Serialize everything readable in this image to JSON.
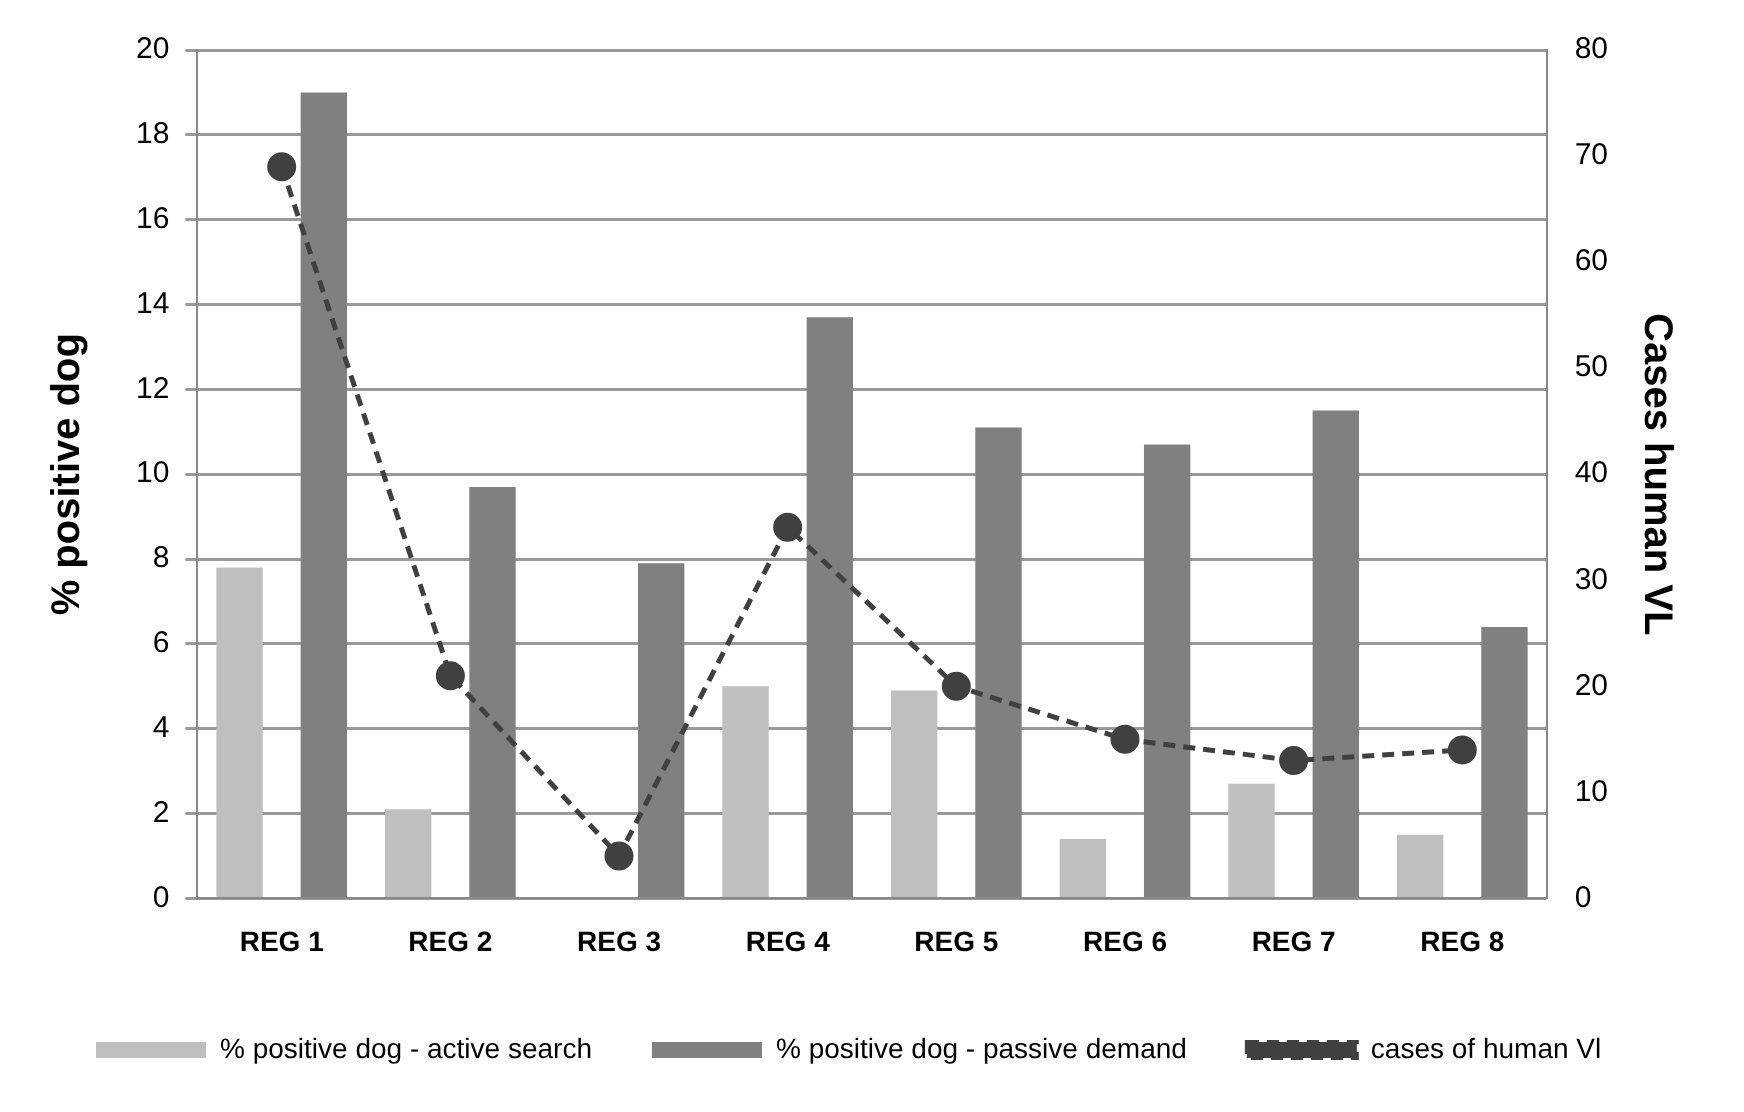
{
  "chart_data": {
    "type": "bar",
    "categories": [
      "REG 1",
      "REG 2",
      "REG 3",
      "REG 4",
      "REG 5",
      "REG 6",
      "REG 7",
      "REG 8"
    ],
    "ylabel": "% positive dog",
    "y2label": "Cases human VL",
    "ylim": [
      0,
      20
    ],
    "yticks": [
      0,
      2,
      4,
      6,
      8,
      10,
      12,
      14,
      16,
      18,
      20
    ],
    "y2lim": [
      0,
      80
    ],
    "y2ticks": [
      0,
      10,
      20,
      30,
      40,
      50,
      60,
      70,
      80
    ],
    "grid": "y",
    "legend": "bottom",
    "series": [
      {
        "name": "% positive dog - active search",
        "color": "#bfbfbf",
        "values": [
          7.8,
          2.1,
          0,
          5.0,
          4.9,
          1.4,
          2.7,
          1.5
        ]
      },
      {
        "name": "% positive dog - passive demand",
        "color": "#808080",
        "values": [
          19.0,
          9.7,
          7.9,
          13.7,
          11.1,
          10.7,
          11.5,
          6.4
        ]
      },
      {
        "name": "cases of human Vl",
        "type": "line",
        "axis": "y2",
        "color": "#404040",
        "marker": "circle",
        "line_style": "dashed",
        "values": [
          69,
          21,
          4,
          35,
          20,
          15,
          13,
          14
        ]
      }
    ]
  }
}
